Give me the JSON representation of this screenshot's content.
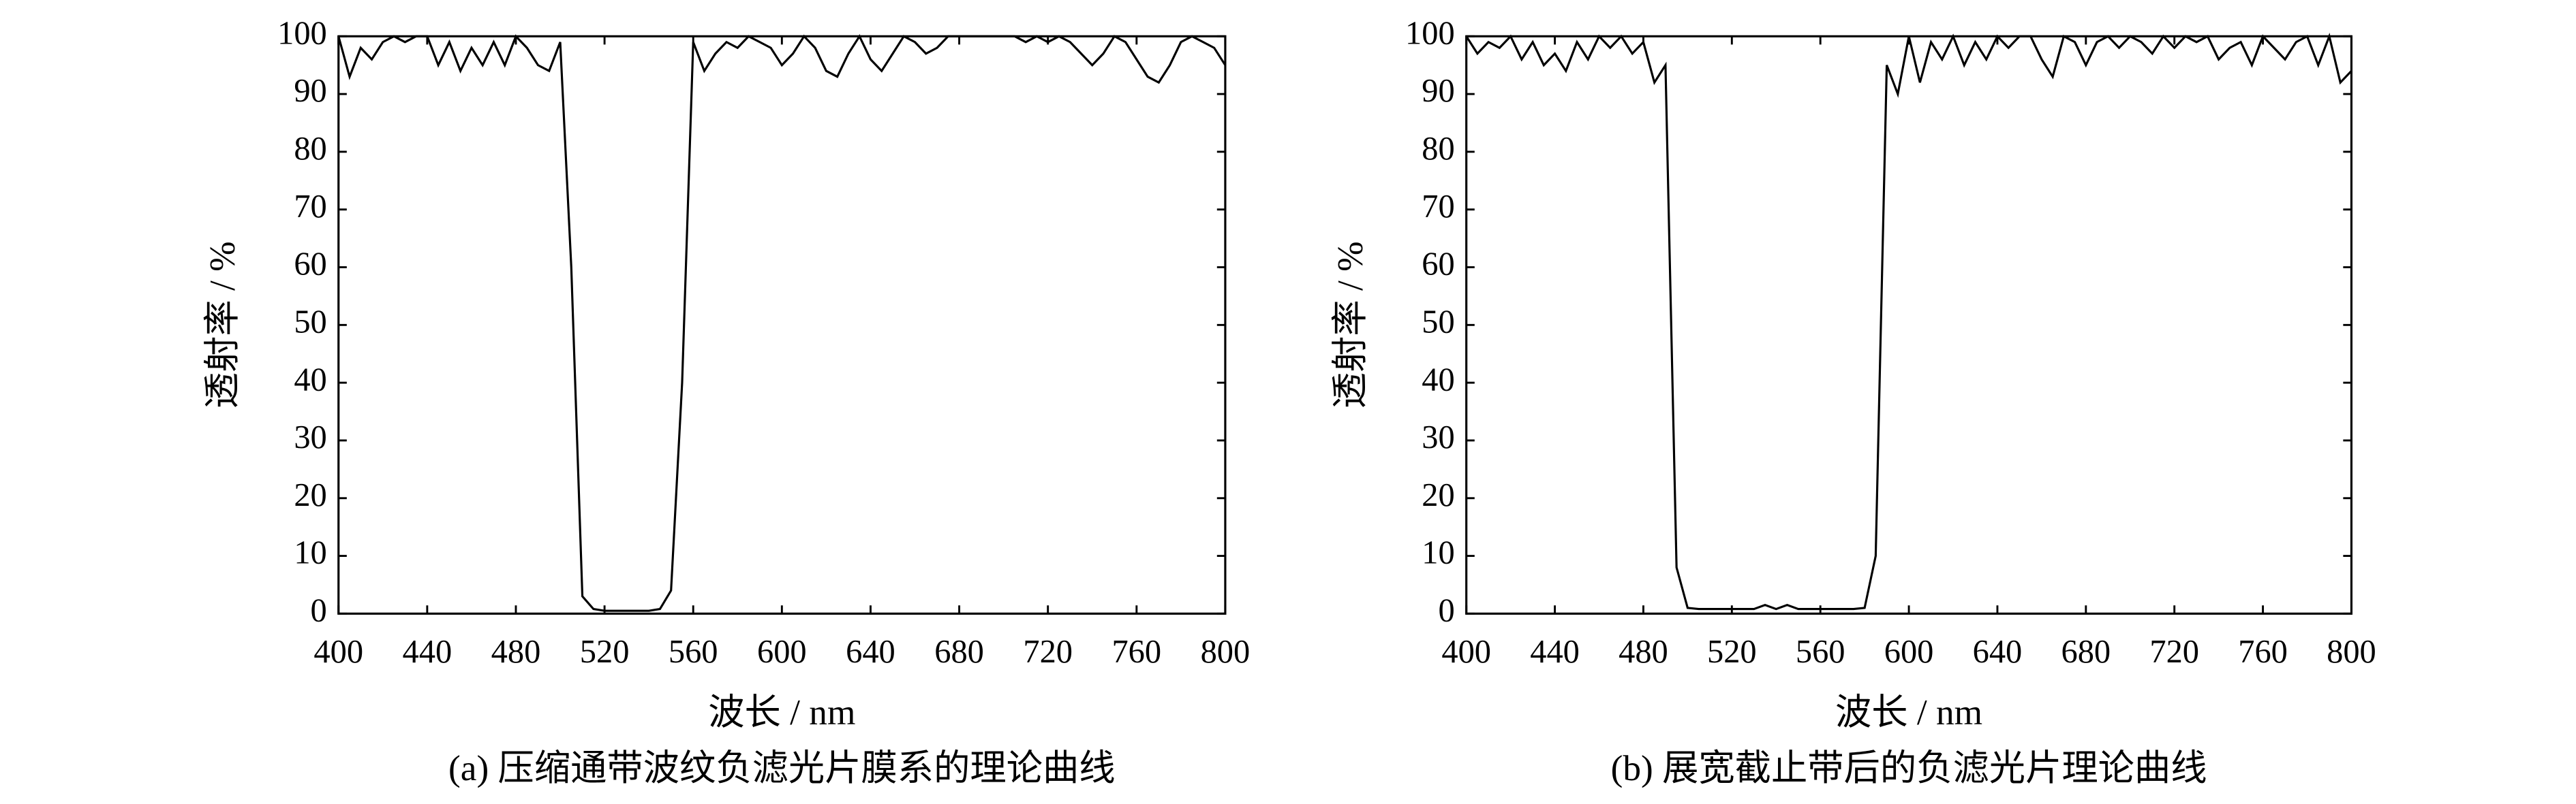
{
  "chart_data": [
    {
      "type": "line",
      "title": "(a) 压缩通带波纹负滤光片膜系的理论曲线",
      "xlabel": "波长 / nm",
      "ylabel": "透射率 / %",
      "xlim": [
        400,
        800
      ],
      "ylim": [
        0,
        100
      ],
      "xticks": [
        400,
        440,
        480,
        520,
        560,
        600,
        640,
        680,
        720,
        760,
        800
      ],
      "yticks": [
        0,
        10,
        20,
        30,
        40,
        50,
        60,
        70,
        80,
        90,
        100
      ],
      "color": "#000000",
      "x": [
        400,
        405,
        410,
        415,
        420,
        425,
        430,
        435,
        440,
        445,
        450,
        455,
        460,
        465,
        470,
        475,
        480,
        485,
        490,
        495,
        500,
        505,
        510,
        515,
        520,
        525,
        530,
        535,
        540,
        545,
        550,
        555,
        560,
        565,
        570,
        575,
        580,
        585,
        590,
        595,
        600,
        605,
        610,
        615,
        620,
        625,
        630,
        635,
        640,
        645,
        650,
        655,
        660,
        665,
        670,
        675,
        680,
        685,
        690,
        695,
        700,
        705,
        710,
        715,
        720,
        725,
        730,
        735,
        740,
        745,
        750,
        755,
        760,
        765,
        770,
        775,
        780,
        785,
        790,
        795,
        800
      ],
      "values": [
        100,
        93,
        98,
        96,
        99,
        100,
        99,
        100,
        100,
        95,
        99,
        94,
        98,
        95,
        99,
        95,
        100,
        98,
        95,
        94,
        99,
        60,
        3,
        0.8,
        0.5,
        0.5,
        0.5,
        0.5,
        0.5,
        0.8,
        4,
        40,
        99,
        94,
        97,
        99,
        98,
        100,
        99,
        98,
        95,
        97,
        100,
        98,
        94,
        93,
        97,
        100,
        96,
        94,
        97,
        100,
        99,
        97,
        98,
        100,
        100,
        100,
        100,
        100,
        100,
        100,
        99,
        100,
        99,
        100,
        99,
        97,
        95,
        97,
        100,
        99,
        96,
        93,
        92,
        95,
        99,
        100,
        99,
        98,
        95
      ]
    },
    {
      "type": "line",
      "title": "(b) 展宽截止带后的负滤光片理论曲线",
      "xlabel": "波长 / nm",
      "ylabel": "透射率 / %",
      "xlim": [
        400,
        800
      ],
      "ylim": [
        0,
        100
      ],
      "xticks": [
        400,
        440,
        480,
        520,
        560,
        600,
        640,
        680,
        720,
        760,
        800
      ],
      "yticks": [
        0,
        10,
        20,
        30,
        40,
        50,
        60,
        70,
        80,
        90,
        100
      ],
      "color": "#000000",
      "x": [
        400,
        405,
        410,
        415,
        420,
        425,
        430,
        435,
        440,
        445,
        450,
        455,
        460,
        465,
        470,
        475,
        480,
        485,
        490,
        495,
        500,
        505,
        510,
        515,
        520,
        525,
        530,
        535,
        540,
        545,
        550,
        555,
        560,
        565,
        570,
        575,
        580,
        585,
        590,
        595,
        600,
        605,
        610,
        615,
        620,
        625,
        630,
        635,
        640,
        645,
        650,
        655,
        660,
        665,
        670,
        675,
        680,
        685,
        690,
        695,
        700,
        705,
        710,
        715,
        720,
        725,
        730,
        735,
        740,
        745,
        750,
        755,
        760,
        765,
        770,
        775,
        780,
        785,
        790,
        795,
        800
      ],
      "values": [
        100,
        97,
        99,
        98,
        100,
        96,
        99,
        95,
        97,
        94,
        99,
        96,
        100,
        98,
        100,
        97,
        99,
        92,
        95,
        8,
        1,
        0.8,
        0.8,
        0.8,
        0.8,
        0.8,
        0.8,
        1.5,
        0.8,
        1.5,
        0.8,
        0.8,
        0.8,
        0.8,
        0.8,
        0.8,
        1,
        10,
        95,
        90,
        100,
        92,
        99,
        96,
        100,
        95,
        99,
        96,
        100,
        98,
        100,
        100,
        96,
        93,
        100,
        99,
        95,
        99,
        100,
        98,
        100,
        99,
        97,
        100,
        98,
        100,
        99,
        100,
        96,
        98,
        99,
        95,
        100,
        98,
        96,
        99,
        100,
        95,
        100,
        92,
        94
      ]
    }
  ]
}
